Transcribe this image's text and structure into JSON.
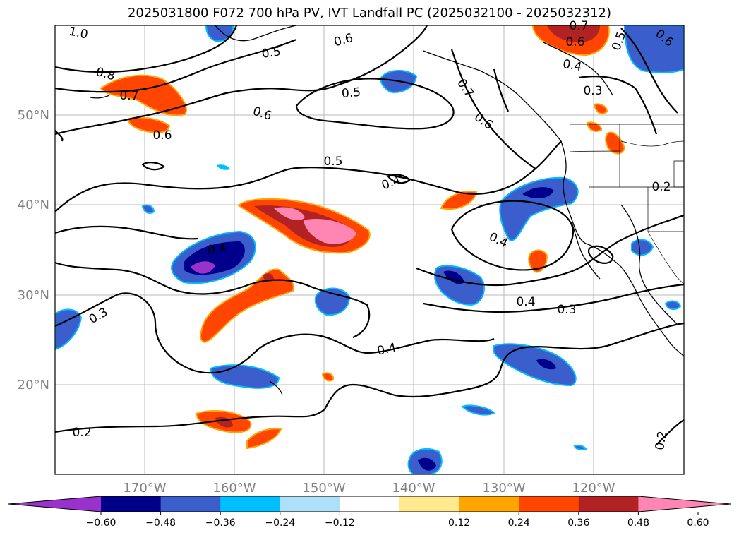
{
  "title": "2025031800 F072 700 hPa PV, IVT Landfall PC (2025032100 - 2025032312)",
  "axes": {
    "x_ticks": [
      "170°W",
      "160°W",
      "150°W",
      "140°W",
      "130°W",
      "120°W"
    ],
    "y_ticks": [
      "50°N",
      "40°N",
      "30°N",
      "20°N"
    ]
  },
  "contour_labels": [
    "1.0",
    "0.5",
    "0.6",
    "0.7",
    "0.6",
    "0.5",
    "0.8",
    "0.7",
    "0.6",
    "0.5",
    "0.6",
    "0.4",
    "0.3",
    "0.6",
    "0.7",
    "0.6",
    "0.5",
    "0.4",
    "0.2",
    "0.4",
    "0.4",
    "0.4",
    "0.3",
    "0.3",
    "0.4",
    "0.2",
    "0.2"
  ],
  "colorbar": {
    "tick_labels": [
      "−0.60",
      "−0.48",
      "−0.36",
      "−0.24",
      "−0.12",
      "0.12",
      "0.24",
      "0.36",
      "0.48",
      "0.60"
    ],
    "colors": [
      "#9932cc",
      "#00008b",
      "#3a5fcd",
      "#00bfff",
      "#afe0fa",
      "#ffffff",
      "#ffe98f",
      "#ffa500",
      "#ff4500",
      "#b22222",
      "#ff85b2"
    ]
  }
}
